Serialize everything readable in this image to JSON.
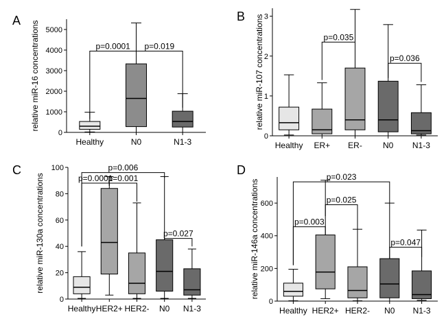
{
  "chart_data": [
    {
      "type": "box",
      "panel_label": "A",
      "ylabel": "relative miR-16 concentrations",
      "categories": [
        "Healthy",
        "N0",
        "N1-3"
      ],
      "ylim": [
        0,
        5500
      ],
      "yticks": [
        0,
        1000,
        2000,
        3000,
        4000,
        5000
      ],
      "boxes": [
        {
          "min": 20,
          "q1": 150,
          "median": 300,
          "q3": 530,
          "max": 980,
          "color": "#e6e6e6"
        },
        {
          "min": 0,
          "q1": 280,
          "median": 1650,
          "q3": 3330,
          "max": 5320,
          "color": "#8c8c8c"
        },
        {
          "min": 0,
          "q1": 260,
          "median": 530,
          "q3": 1030,
          "max": 1880,
          "color": "#6a6a6a"
        }
      ],
      "annotations": [
        {
          "text": "p=0.0001",
          "from": 0,
          "to": 1,
          "level": 3950,
          "left_end": 650,
          "right_end": 3500
        },
        {
          "text": "p=0.019",
          "from": 1,
          "to": 2,
          "level": 3950,
          "left_end": 3500,
          "right_end": 1200
        }
      ]
    },
    {
      "type": "box",
      "panel_label": "B",
      "ylabel": "relative miR-107 concentrations",
      "categories": [
        "Healthy",
        "ER+",
        "ER-",
        "N0",
        "N1-3"
      ],
      "ylim": [
        0,
        3.2
      ],
      "yticks": [
        0,
        1,
        2,
        3
      ],
      "boxes": [
        {
          "min": 0.02,
          "q1": 0.15,
          "median": 0.33,
          "q3": 0.72,
          "max": 1.53,
          "color": "#e6e6e6"
        },
        {
          "min": 0.0,
          "q1": 0.05,
          "median": 0.15,
          "q3": 0.67,
          "max": 1.33,
          "color": "#a6a6a6"
        },
        {
          "min": 0.0,
          "q1": 0.15,
          "median": 0.4,
          "q3": 1.7,
          "max": 3.17,
          "color": "#a6a6a6"
        },
        {
          "min": 0.0,
          "q1": 0.1,
          "median": 0.4,
          "q3": 1.37,
          "max": 2.79,
          "color": "#6a6a6a"
        },
        {
          "min": 0.02,
          "q1": 0.05,
          "median": 0.13,
          "q3": 0.58,
          "max": 1.28,
          "color": "#6a6a6a"
        }
      ],
      "annotations": [
        {
          "text": "p=0.035",
          "from": 1,
          "to": 2,
          "level": 2.35,
          "left_end": 1.4,
          "right_end": 1.8
        },
        {
          "text": "p=0.036",
          "from": 3,
          "to": 4,
          "level": 1.82,
          "left_end": 1.45,
          "right_end": 1.35
        }
      ]
    },
    {
      "type": "box",
      "panel_label": "C",
      "ylabel": "relative miR-130a concentrations",
      "categories": [
        "Healthy",
        "HER2+",
        "HER2-",
        "N0",
        "N1-3"
      ],
      "ylim": [
        0,
        100
      ],
      "yticks": [
        0,
        20,
        40,
        60,
        80,
        100
      ],
      "boxes": [
        {
          "min": 0.5,
          "q1": 4,
          "median": 9,
          "q3": 17,
          "max": 36,
          "color": "#e6e6e6"
        },
        {
          "min": 3,
          "q1": 19,
          "median": 43,
          "q3": 84,
          "max": 93,
          "color": "#a6a6a6"
        },
        {
          "min": 0.5,
          "q1": 4,
          "median": 12,
          "q3": 35,
          "max": 73,
          "color": "#a6a6a6"
        },
        {
          "min": 0.5,
          "q1": 6,
          "median": 21,
          "q3": 45,
          "max": 93,
          "color": "#6a6a6a"
        },
        {
          "min": 0.5,
          "q1": 3,
          "median": 7,
          "q3": 23,
          "max": 38,
          "color": "#6a6a6a"
        }
      ],
      "annotations": [
        {
          "text": "p=0.006",
          "from": 0,
          "to": 3,
          "level": 96,
          "left_end": 40,
          "right_end": 92
        },
        {
          "text": "p=0.0001",
          "from": 0,
          "to": 1,
          "level": 88,
          "left_end": 40,
          "right_end": 86
        },
        {
          "text": "p=0.001",
          "from": 1,
          "to": 2,
          "level": 88,
          "left_end": 86,
          "right_end": 74
        },
        {
          "text": "p=0.027",
          "from": 3,
          "to": 4,
          "level": 46,
          "left_end": 45,
          "right_end": 40
        }
      ]
    },
    {
      "type": "box",
      "panel_label": "D",
      "ylabel": "relative miR-146a concentrations",
      "categories": [
        "Healthy",
        "HER2+",
        "HER2-",
        "N0",
        "N1-3"
      ],
      "ylim": [
        0,
        760
      ],
      "yticks": [
        0,
        200,
        400,
        600
      ],
      "boxes": [
        {
          "min": 2,
          "q1": 30,
          "median": 60,
          "q3": 110,
          "max": 195,
          "color": "#e6e6e6"
        },
        {
          "min": 15,
          "q1": 75,
          "median": 178,
          "q3": 405,
          "max": 740,
          "color": "#a6a6a6"
        },
        {
          "min": 2,
          "q1": 20,
          "median": 65,
          "q3": 210,
          "max": 440,
          "color": "#a6a6a6"
        },
        {
          "min": 0,
          "q1": 20,
          "median": 105,
          "q3": 260,
          "max": 600,
          "color": "#6a6a6a"
        },
        {
          "min": 5,
          "q1": 15,
          "median": 40,
          "q3": 185,
          "max": 435,
          "color": "#6a6a6a"
        }
      ],
      "annotations": [
        {
          "text": "p=0.023",
          "from": 0,
          "to": 3,
          "level": 730,
          "left_end": 220,
          "right_end": 600
        },
        {
          "text": "p=0.003",
          "from": 0,
          "to": 1,
          "level": 455,
          "left_end": 220,
          "right_end": 405
        },
        {
          "text": "p=0.025",
          "from": 1,
          "to": 2,
          "level": 590,
          "left_end": 520,
          "right_end": 440
        },
        {
          "text": "p=0.047",
          "from": 3,
          "to": 4,
          "level": 330,
          "left_end": 260,
          "right_end": 270
        }
      ]
    }
  ]
}
